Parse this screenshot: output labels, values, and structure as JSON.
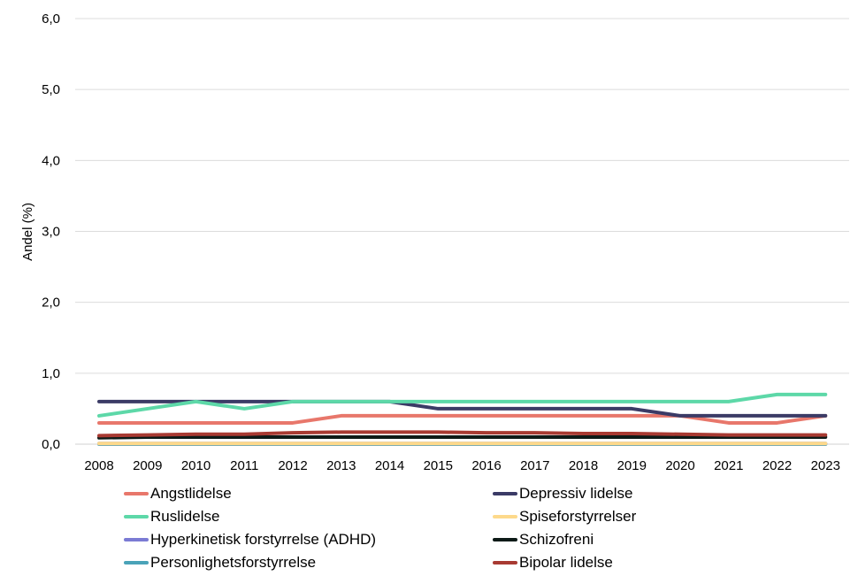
{
  "chart_data": {
    "type": "line",
    "title": "",
    "xlabel": "",
    "ylabel": "Andel (%)",
    "ylim": [
      0,
      6
    ],
    "yticks": [
      "0,0",
      "1,0",
      "2,0",
      "3,0",
      "4,0",
      "5,0",
      "6,0"
    ],
    "grid": true,
    "legend_position": "bottom",
    "categories": [
      "2008",
      "2009",
      "2010",
      "2011",
      "2012",
      "2013",
      "2014",
      "2015",
      "2016",
      "2017",
      "2018",
      "2019",
      "2020",
      "2021",
      "2022",
      "2023"
    ],
    "series": [
      {
        "name": "Angstlidelse",
        "color": "#e8776b",
        "values": [
          0.3,
          0.3,
          0.3,
          0.3,
          0.3,
          0.4,
          0.4,
          0.4,
          0.4,
          0.4,
          0.4,
          0.4,
          0.4,
          0.3,
          0.3,
          0.4
        ]
      },
      {
        "name": "Depressiv lidelse",
        "color": "#3b3b66",
        "values": [
          0.6,
          0.6,
          0.6,
          0.6,
          0.6,
          0.6,
          0.6,
          0.5,
          0.5,
          0.5,
          0.5,
          0.5,
          0.4,
          0.4,
          0.4,
          0.4
        ]
      },
      {
        "name": "Ruslidelse",
        "color": "#5dd8a8",
        "values": [
          0.4,
          0.5,
          0.6,
          0.5,
          0.6,
          0.6,
          0.6,
          0.6,
          0.6,
          0.6,
          0.6,
          0.6,
          0.6,
          0.6,
          0.7,
          0.7
        ]
      },
      {
        "name": "Spiseforstyrrelser",
        "color": "#fdd98b",
        "values": [
          0.01,
          0.01,
          0.01,
          0.01,
          0.01,
          0.01,
          0.01,
          0.01,
          0.01,
          0.01,
          0.01,
          0.01,
          0.01,
          0.01,
          0.01,
          0.01
        ]
      },
      {
        "name": "Hyperkinetisk forstyrrelse (ADHD)",
        "color": "#7b7bd4",
        "values": [
          0.01,
          0.01,
          0.01,
          0.01,
          0.01,
          0.01,
          0.01,
          0.01,
          0.01,
          0.01,
          0.01,
          0.01,
          0.01,
          0.01,
          0.01,
          0.01
        ]
      },
      {
        "name": "Schizofreni",
        "color": "#0d1a17",
        "values": [
          0.09,
          0.1,
          0.1,
          0.1,
          0.1,
          0.1,
          0.1,
          0.1,
          0.1,
          0.1,
          0.1,
          0.1,
          0.1,
          0.1,
          0.1,
          0.1
        ]
      },
      {
        "name": "Personlighetsforstyrrelse",
        "color": "#4aa3b8",
        "values": [
          0.0,
          0.0,
          0.0,
          0.0,
          0.0,
          0.0,
          0.0,
          0.0,
          0.0,
          0.0,
          0.0,
          0.0,
          0.0,
          0.0,
          0.0,
          0.0
        ]
      },
      {
        "name": "Bipolar lidelse",
        "color": "#a83a32",
        "values": [
          0.12,
          0.13,
          0.14,
          0.14,
          0.16,
          0.17,
          0.17,
          0.17,
          0.16,
          0.16,
          0.15,
          0.15,
          0.14,
          0.13,
          0.13,
          0.13
        ]
      }
    ]
  }
}
